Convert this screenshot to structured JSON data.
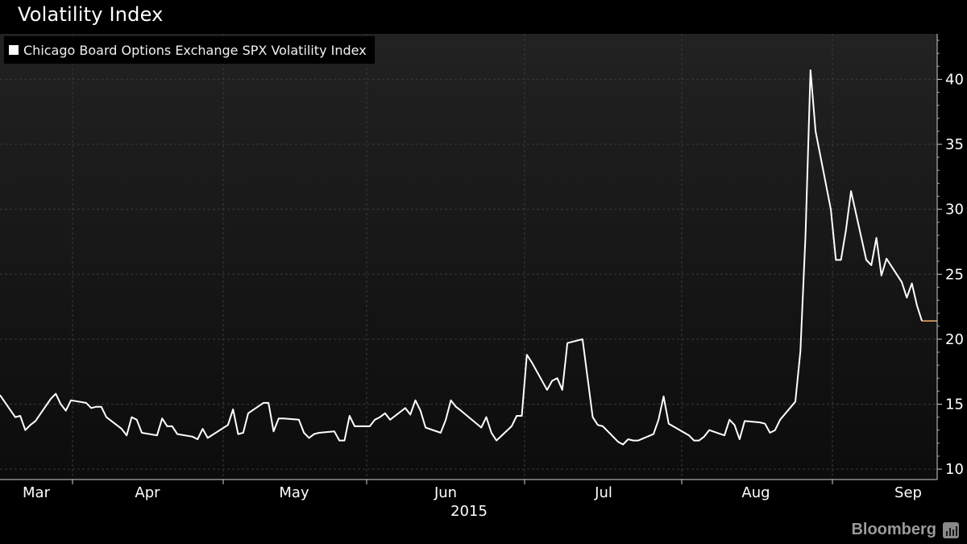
{
  "header": {
    "title": "Volatility Index"
  },
  "brand": {
    "name": "Bloomberg",
    "icon": "bloomberg-chart-icon"
  },
  "colors": {
    "background": "#000000",
    "series": "#ffffff",
    "tail": "#f5b56b",
    "grid": "#3a3a3a"
  },
  "chart_data": {
    "type": "line",
    "title": "Volatility Index",
    "year_label": "2015",
    "legend": {
      "entries": [
        "Chicago Board Options Exchange SPX Volatility Index"
      ],
      "position": "top-left"
    },
    "x_ticks": [
      "Mar",
      "Apr",
      "May",
      "Jun",
      "Jul",
      "Aug",
      "Sep"
    ],
    "y_ticks": [
      10,
      15,
      20,
      25,
      30,
      35,
      40
    ],
    "ylim": [
      9.2,
      43.5
    ],
    "y_axis_side": "right",
    "grid": true,
    "series": [
      {
        "name": "Chicago Board Options Exchange SPX Volatility Index",
        "color": "#ffffff",
        "points": [
          [
            "2015-02-20",
            15.7
          ],
          [
            "2015-02-23",
            14.0
          ],
          [
            "2015-02-24",
            14.1
          ],
          [
            "2015-02-25",
            13.0
          ],
          [
            "2015-02-26",
            13.4
          ],
          [
            "2015-02-27",
            13.7
          ],
          [
            "2015-03-02",
            15.4
          ],
          [
            "2015-03-03",
            15.8
          ],
          [
            "2015-03-04",
            15.0
          ],
          [
            "2015-03-05",
            14.5
          ],
          [
            "2015-03-06",
            15.3
          ],
          [
            "2015-03-09",
            15.1
          ],
          [
            "2015-03-10",
            14.7
          ],
          [
            "2015-03-11",
            14.8
          ],
          [
            "2015-03-12",
            14.8
          ],
          [
            "2015-03-13",
            14.0
          ],
          [
            "2015-03-16",
            13.1
          ],
          [
            "2015-03-17",
            12.6
          ],
          [
            "2015-03-18",
            14.0
          ],
          [
            "2015-03-19",
            13.8
          ],
          [
            "2015-03-20",
            12.8
          ],
          [
            "2015-03-23",
            12.6
          ],
          [
            "2015-03-24",
            13.9
          ],
          [
            "2015-03-25",
            13.3
          ],
          [
            "2015-03-26",
            13.3
          ],
          [
            "2015-03-27",
            12.7
          ],
          [
            "2015-03-30",
            12.5
          ],
          [
            "2015-03-31",
            12.3
          ],
          [
            "2015-04-01",
            13.1
          ],
          [
            "2015-04-02",
            12.4
          ],
          [
            "2015-04-06",
            13.4
          ],
          [
            "2015-04-07",
            14.6
          ],
          [
            "2015-04-08",
            12.7
          ],
          [
            "2015-04-09",
            12.8
          ],
          [
            "2015-04-10",
            14.3
          ],
          [
            "2015-04-13",
            15.1
          ],
          [
            "2015-04-14",
            15.1
          ],
          [
            "2015-04-15",
            12.9
          ],
          [
            "2015-04-16",
            13.9
          ],
          [
            "2015-04-17",
            13.9
          ],
          [
            "2015-04-20",
            13.8
          ],
          [
            "2015-04-21",
            12.8
          ],
          [
            "2015-04-22",
            12.4
          ],
          [
            "2015-04-23",
            12.7
          ],
          [
            "2015-04-24",
            12.8
          ],
          [
            "2015-04-27",
            12.9
          ],
          [
            "2015-04-28",
            12.2
          ],
          [
            "2015-04-29",
            12.2
          ],
          [
            "2015-04-30",
            14.1
          ],
          [
            "2015-05-01",
            13.3
          ],
          [
            "2015-05-04",
            13.3
          ],
          [
            "2015-05-05",
            13.8
          ],
          [
            "2015-05-06",
            14.0
          ],
          [
            "2015-05-07",
            14.3
          ],
          [
            "2015-05-08",
            13.8
          ],
          [
            "2015-05-11",
            14.7
          ],
          [
            "2015-05-12",
            14.2
          ],
          [
            "2015-05-13",
            15.3
          ],
          [
            "2015-05-14",
            14.5
          ],
          [
            "2015-05-15",
            13.2
          ],
          [
            "2015-05-18",
            12.8
          ],
          [
            "2015-05-19",
            13.8
          ],
          [
            "2015-05-20",
            15.3
          ],
          [
            "2015-05-21",
            14.8
          ],
          [
            "2015-05-22",
            14.5
          ],
          [
            "2015-05-26",
            13.2
          ],
          [
            "2015-05-27",
            14.0
          ],
          [
            "2015-05-28",
            12.8
          ],
          [
            "2015-05-29",
            12.2
          ],
          [
            "2015-06-01",
            13.3
          ],
          [
            "2015-06-02",
            14.1
          ],
          [
            "2015-06-03",
            14.1
          ],
          [
            "2015-06-04",
            18.8
          ],
          [
            "2015-06-05",
            18.2
          ],
          [
            "2015-06-08",
            16.1
          ],
          [
            "2015-06-09",
            16.8
          ],
          [
            "2015-06-10",
            17.0
          ],
          [
            "2015-06-11",
            16.1
          ],
          [
            "2015-06-12",
            19.7
          ],
          [
            "2015-06-15",
            20.0
          ],
          [
            "2015-06-16",
            17.0
          ],
          [
            "2015-06-17",
            14.0
          ],
          [
            "2015-06-18",
            13.4
          ],
          [
            "2015-06-19",
            13.3
          ],
          [
            "2015-06-22",
            12.1
          ],
          [
            "2015-06-23",
            11.9
          ],
          [
            "2015-06-24",
            12.3
          ],
          [
            "2015-06-25",
            12.2
          ],
          [
            "2015-06-26",
            12.2
          ],
          [
            "2015-06-29",
            12.7
          ],
          [
            "2015-06-30",
            13.8
          ],
          [
            "2015-07-01",
            15.6
          ],
          [
            "2015-07-02",
            13.5
          ],
          [
            "2015-07-06",
            12.6
          ],
          [
            "2015-07-07",
            12.2
          ],
          [
            "2015-07-08",
            12.2
          ],
          [
            "2015-07-09",
            12.5
          ],
          [
            "2015-07-10",
            13.0
          ],
          [
            "2015-07-13",
            12.6
          ],
          [
            "2015-07-14",
            13.8
          ],
          [
            "2015-07-15",
            13.4
          ],
          [
            "2015-07-16",
            12.3
          ],
          [
            "2015-07-17",
            13.7
          ],
          [
            "2015-07-20",
            13.6
          ],
          [
            "2015-07-21",
            13.5
          ],
          [
            "2015-07-22",
            12.8
          ],
          [
            "2015-07-23",
            13.0
          ],
          [
            "2015-07-24",
            13.8
          ],
          [
            "2015-07-27",
            15.2
          ],
          [
            "2015-07-28",
            19.1
          ],
          [
            "2015-07-29",
            28.0
          ],
          [
            "2015-07-30",
            40.7
          ],
          [
            "2015-07-31",
            36.0
          ],
          [
            "2015-08-03",
            30.0
          ],
          [
            "2015-08-04",
            26.1
          ],
          [
            "2015-08-05",
            26.1
          ],
          [
            "2015-08-06",
            28.4
          ],
          [
            "2015-08-07",
            31.4
          ],
          [
            "2015-08-10",
            26.1
          ],
          [
            "2015-08-11",
            25.7
          ],
          [
            "2015-08-12",
            27.8
          ],
          [
            "2015-08-13",
            24.9
          ],
          [
            "2015-08-14",
            26.2
          ],
          [
            "2015-08-17",
            24.4
          ],
          [
            "2015-08-18",
            23.2
          ],
          [
            "2015-08-19",
            24.3
          ],
          [
            "2015-08-20",
            22.6
          ],
          [
            "2015-08-21",
            21.4
          ]
        ],
        "flat_tail": {
          "value": 21.4,
          "color": "#f5b56b"
        }
      }
    ]
  }
}
